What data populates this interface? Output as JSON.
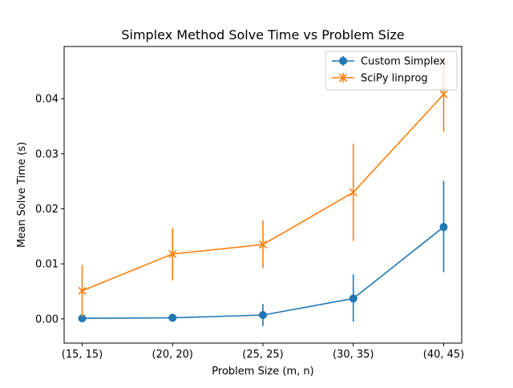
{
  "chart_data": {
    "type": "line",
    "title": "Simplex Method Solve Time vs Problem Size",
    "xlabel": "Problem Size (m, n)",
    "ylabel": "Mean Solve Time (s)",
    "categories": [
      "(15, 15)",
      "(20, 20)",
      "(25, 25)",
      "(30, 35)",
      "(40, 45)"
    ],
    "ylim": [
      -0.0044,
      0.0495
    ],
    "yticks": [
      0.0,
      0.01,
      0.02,
      0.03,
      0.04
    ],
    "ytick_labels": [
      "0.00",
      "0.01",
      "0.02",
      "0.03",
      "0.04"
    ],
    "grid": false,
    "legend_position": "top-right",
    "series": [
      {
        "name": "Custom Simplex",
        "color": "#1f77b4",
        "marker": "circle",
        "values": [
          0.0001,
          0.0002,
          0.0007,
          0.0037,
          0.0167
        ],
        "err_low": [
          0.0,
          0.0,
          -0.0013,
          -0.0005,
          0.0085
        ],
        "err_high": [
          0.0002,
          0.0003,
          0.0027,
          0.0081,
          0.0251
        ]
      },
      {
        "name": "SciPy linprog",
        "color": "#ff7f0e",
        "marker": "x",
        "values": [
          0.0051,
          0.0118,
          0.0135,
          0.023,
          0.0408
        ],
        "err_low": [
          0.0003,
          0.007,
          0.0092,
          0.0142,
          0.034
        ],
        "err_high": [
          0.0098,
          0.0165,
          0.0179,
          0.0318,
          0.0475
        ]
      }
    ]
  }
}
